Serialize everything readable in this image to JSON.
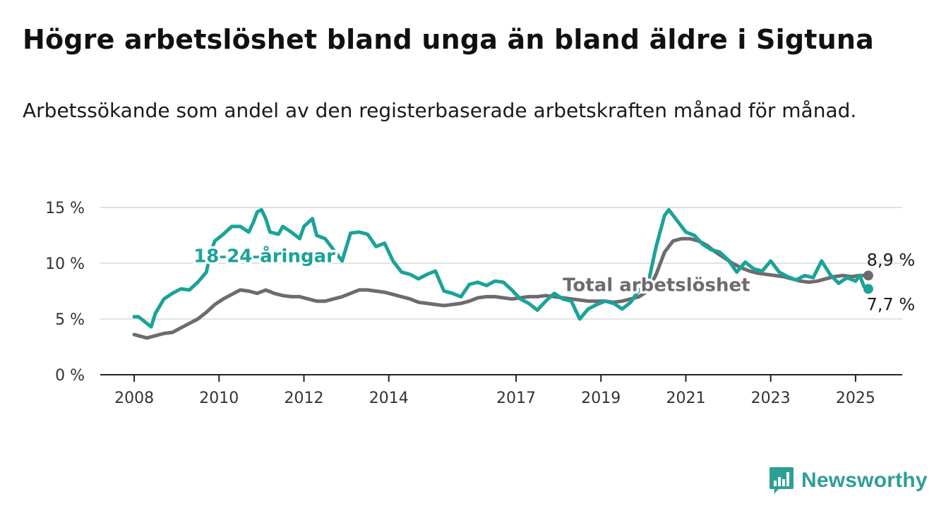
{
  "header": {
    "title": "Högre arbetslöshet bland unga än bland äldre i Sigtuna",
    "subtitle": "Arbetssökande som andel av den registerbaserade arbetskraften månad för månad."
  },
  "brand": {
    "name": "Newsworthy",
    "color": "#2e9f96",
    "icon": "bar-chart-icon"
  },
  "chart_data": {
    "type": "line",
    "x_unit": "year",
    "xlim": [
      2007.2,
      2026.1
    ],
    "ylim": [
      0,
      15
    ],
    "y_ticks": [
      {
        "value": 0,
        "label": "0 %"
      },
      {
        "value": 5,
        "label": "5 %"
      },
      {
        "value": 10,
        "label": "10 %"
      },
      {
        "value": 15,
        "label": "15 %"
      }
    ],
    "x_ticks": [
      {
        "value": 2008,
        "label": "2008"
      },
      {
        "value": 2010,
        "label": "2010"
      },
      {
        "value": 2012,
        "label": "2012"
      },
      {
        "value": 2014,
        "label": "2014"
      },
      {
        "value": 2017,
        "label": "2017"
      },
      {
        "value": 2019,
        "label": "2019"
      },
      {
        "value": 2021,
        "label": "2021"
      },
      {
        "value": 2023,
        "label": "2023"
      },
      {
        "value": 2025,
        "label": "2025"
      }
    ],
    "grid": true,
    "series": [
      {
        "name": "Total arbetslöshet",
        "color": "#6e6b70",
        "label_at": [
          2018.1,
          7.5
        ],
        "end_label": "8,9 %",
        "points": [
          [
            2008.0,
            3.6
          ],
          [
            2008.2,
            3.4
          ],
          [
            2008.3,
            3.3
          ],
          [
            2008.5,
            3.5
          ],
          [
            2008.7,
            3.7
          ],
          [
            2008.9,
            3.8
          ],
          [
            2009.1,
            4.2
          ],
          [
            2009.3,
            4.6
          ],
          [
            2009.5,
            5.0
          ],
          [
            2009.7,
            5.6
          ],
          [
            2009.9,
            6.3
          ],
          [
            2010.1,
            6.8
          ],
          [
            2010.3,
            7.2
          ],
          [
            2010.5,
            7.6
          ],
          [
            2010.7,
            7.5
          ],
          [
            2010.9,
            7.3
          ],
          [
            2011.1,
            7.6
          ],
          [
            2011.3,
            7.3
          ],
          [
            2011.5,
            7.1
          ],
          [
            2011.7,
            7.0
          ],
          [
            2011.9,
            7.0
          ],
          [
            2012.1,
            6.8
          ],
          [
            2012.3,
            6.6
          ],
          [
            2012.5,
            6.6
          ],
          [
            2012.7,
            6.8
          ],
          [
            2012.9,
            7.0
          ],
          [
            2013.1,
            7.3
          ],
          [
            2013.3,
            7.6
          ],
          [
            2013.5,
            7.6
          ],
          [
            2013.7,
            7.5
          ],
          [
            2013.9,
            7.4
          ],
          [
            2014.1,
            7.2
          ],
          [
            2014.3,
            7.0
          ],
          [
            2014.5,
            6.8
          ],
          [
            2014.7,
            6.5
          ],
          [
            2014.9,
            6.4
          ],
          [
            2015.1,
            6.3
          ],
          [
            2015.3,
            6.2
          ],
          [
            2015.5,
            6.3
          ],
          [
            2015.7,
            6.4
          ],
          [
            2015.9,
            6.6
          ],
          [
            2016.1,
            6.9
          ],
          [
            2016.3,
            7.0
          ],
          [
            2016.5,
            7.0
          ],
          [
            2016.7,
            6.9
          ],
          [
            2016.9,
            6.8
          ],
          [
            2017.1,
            6.9
          ],
          [
            2017.3,
            7.0
          ],
          [
            2017.5,
            7.0
          ],
          [
            2017.7,
            7.1
          ],
          [
            2017.9,
            7.0
          ],
          [
            2018.1,
            6.9
          ],
          [
            2018.3,
            6.8
          ],
          [
            2018.5,
            6.7
          ],
          [
            2018.7,
            6.6
          ],
          [
            2018.9,
            6.6
          ],
          [
            2019.1,
            6.6
          ],
          [
            2019.3,
            6.5
          ],
          [
            2019.5,
            6.6
          ],
          [
            2019.7,
            6.8
          ],
          [
            2019.9,
            7.0
          ],
          [
            2020.1,
            7.5
          ],
          [
            2020.3,
            9.0
          ],
          [
            2020.5,
            11.0
          ],
          [
            2020.7,
            12.0
          ],
          [
            2020.9,
            12.2
          ],
          [
            2021.1,
            12.2
          ],
          [
            2021.3,
            12.0
          ],
          [
            2021.5,
            11.6
          ],
          [
            2021.7,
            11.0
          ],
          [
            2021.9,
            10.5
          ],
          [
            2022.1,
            10.0
          ],
          [
            2022.3,
            9.6
          ],
          [
            2022.5,
            9.3
          ],
          [
            2022.7,
            9.1
          ],
          [
            2022.9,
            9.0
          ],
          [
            2023.1,
            8.9
          ],
          [
            2023.3,
            8.8
          ],
          [
            2023.5,
            8.6
          ],
          [
            2023.7,
            8.4
          ],
          [
            2023.9,
            8.3
          ],
          [
            2024.1,
            8.4
          ],
          [
            2024.3,
            8.6
          ],
          [
            2024.5,
            8.8
          ],
          [
            2024.7,
            8.9
          ],
          [
            2024.9,
            8.8
          ],
          [
            2025.1,
            8.9
          ],
          [
            2025.3,
            8.9
          ]
        ]
      },
      {
        "name": "18-24-åringar",
        "color": "#1aa398",
        "label_at": [
          2009.4,
          10.1
        ],
        "end_label": "7,7 %",
        "points": [
          [
            2008.0,
            5.2
          ],
          [
            2008.1,
            5.2
          ],
          [
            2008.3,
            4.6
          ],
          [
            2008.4,
            4.3
          ],
          [
            2008.5,
            5.5
          ],
          [
            2008.7,
            6.8
          ],
          [
            2008.9,
            7.3
          ],
          [
            2009.1,
            7.7
          ],
          [
            2009.3,
            7.6
          ],
          [
            2009.5,
            8.3
          ],
          [
            2009.7,
            9.2
          ],
          [
            2009.8,
            11.0
          ],
          [
            2009.9,
            12.0
          ],
          [
            2010.1,
            12.6
          ],
          [
            2010.3,
            13.3
          ],
          [
            2010.5,
            13.3
          ],
          [
            2010.7,
            12.8
          ],
          [
            2010.8,
            13.6
          ],
          [
            2010.9,
            14.6
          ],
          [
            2011.0,
            14.8
          ],
          [
            2011.1,
            14.0
          ],
          [
            2011.2,
            12.8
          ],
          [
            2011.4,
            12.6
          ],
          [
            2011.5,
            13.3
          ],
          [
            2011.7,
            12.8
          ],
          [
            2011.9,
            12.2
          ],
          [
            2012.0,
            13.3
          ],
          [
            2012.2,
            14.0
          ],
          [
            2012.3,
            12.5
          ],
          [
            2012.5,
            12.2
          ],
          [
            2012.7,
            11.2
          ],
          [
            2012.9,
            10.2
          ],
          [
            2013.1,
            12.7
          ],
          [
            2013.3,
            12.8
          ],
          [
            2013.5,
            12.6
          ],
          [
            2013.7,
            11.5
          ],
          [
            2013.9,
            11.8
          ],
          [
            2014.1,
            10.2
          ],
          [
            2014.3,
            9.2
          ],
          [
            2014.5,
            9.0
          ],
          [
            2014.7,
            8.6
          ],
          [
            2014.9,
            9.0
          ],
          [
            2015.1,
            9.3
          ],
          [
            2015.3,
            7.5
          ],
          [
            2015.5,
            7.3
          ],
          [
            2015.7,
            7.0
          ],
          [
            2015.9,
            8.1
          ],
          [
            2016.1,
            8.3
          ],
          [
            2016.3,
            8.0
          ],
          [
            2016.5,
            8.4
          ],
          [
            2016.7,
            8.3
          ],
          [
            2016.9,
            7.6
          ],
          [
            2017.1,
            6.8
          ],
          [
            2017.3,
            6.4
          ],
          [
            2017.5,
            5.8
          ],
          [
            2017.7,
            6.6
          ],
          [
            2017.9,
            7.3
          ],
          [
            2018.1,
            6.8
          ],
          [
            2018.3,
            6.6
          ],
          [
            2018.5,
            5.0
          ],
          [
            2018.7,
            5.9
          ],
          [
            2018.9,
            6.3
          ],
          [
            2019.1,
            6.6
          ],
          [
            2019.3,
            6.4
          ],
          [
            2019.5,
            5.9
          ],
          [
            2019.7,
            6.5
          ],
          [
            2019.9,
            7.6
          ],
          [
            2020.1,
            8.0
          ],
          [
            2020.3,
            11.5
          ],
          [
            2020.5,
            14.3
          ],
          [
            2020.6,
            14.8
          ],
          [
            2020.8,
            13.8
          ],
          [
            2021.0,
            12.8
          ],
          [
            2021.2,
            12.5
          ],
          [
            2021.4,
            11.7
          ],
          [
            2021.6,
            11.2
          ],
          [
            2021.8,
            11.0
          ],
          [
            2022.0,
            10.3
          ],
          [
            2022.2,
            9.2
          ],
          [
            2022.4,
            10.1
          ],
          [
            2022.6,
            9.5
          ],
          [
            2022.8,
            9.3
          ],
          [
            2023.0,
            10.2
          ],
          [
            2023.2,
            9.2
          ],
          [
            2023.4,
            8.8
          ],
          [
            2023.6,
            8.5
          ],
          [
            2023.8,
            8.9
          ],
          [
            2024.0,
            8.7
          ],
          [
            2024.2,
            10.2
          ],
          [
            2024.4,
            9.0
          ],
          [
            2024.6,
            8.2
          ],
          [
            2024.8,
            8.7
          ],
          [
            2025.0,
            8.4
          ],
          [
            2025.1,
            8.9
          ],
          [
            2025.2,
            7.9
          ],
          [
            2025.3,
            7.7
          ]
        ]
      }
    ]
  }
}
